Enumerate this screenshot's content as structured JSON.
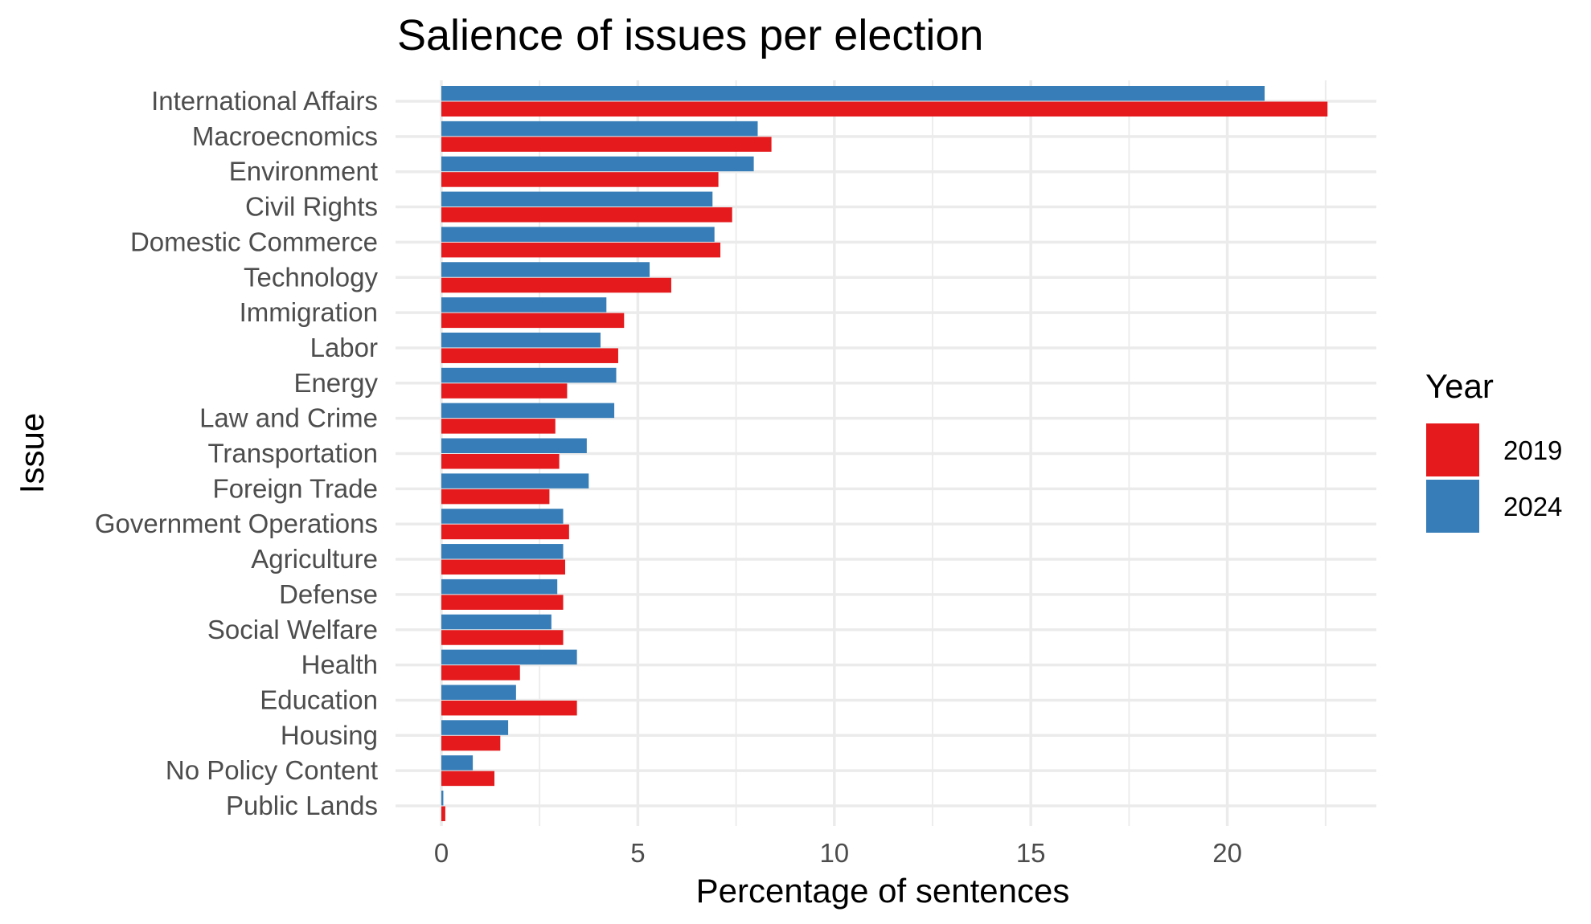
{
  "chart_data": {
    "type": "bar",
    "orientation": "horizontal",
    "title": "Salience of issues per election",
    "xlabel": "Percentage of sentences",
    "ylabel": "Issue",
    "xlim": [
      0,
      23.5
    ],
    "xticks": [
      0,
      5,
      10,
      15,
      20
    ],
    "grid": true,
    "legend": {
      "title": "Year",
      "placement": "right"
    },
    "categories": [
      "International Affairs",
      "Macroecnomics",
      "Environment",
      "Civil Rights",
      "Domestic Commerce",
      "Technology",
      "Immigration",
      "Labor",
      "Energy",
      "Law and Crime",
      "Transportation",
      "Foreign Trade",
      "Government Operations",
      "Agriculture",
      "Defense",
      "Social Welfare",
      "Health",
      "Education",
      "Housing",
      "No Policy Content",
      "Public Lands"
    ],
    "series": [
      {
        "name": "2019",
        "color": "#e41a1c",
        "values": [
          22.55,
          8.4,
          7.05,
          7.4,
          7.1,
          5.85,
          4.65,
          4.5,
          3.2,
          2.9,
          3.0,
          2.75,
          3.25,
          3.15,
          3.1,
          3.1,
          2.0,
          3.45,
          1.5,
          1.35,
          0.1
        ]
      },
      {
        "name": "2024",
        "color": "#377eb8",
        "values": [
          20.95,
          8.05,
          7.95,
          6.9,
          6.95,
          5.3,
          4.2,
          4.05,
          4.45,
          4.4,
          3.7,
          3.75,
          3.1,
          3.1,
          2.95,
          2.8,
          3.45,
          1.9,
          1.7,
          0.8,
          0.05
        ]
      }
    ]
  }
}
